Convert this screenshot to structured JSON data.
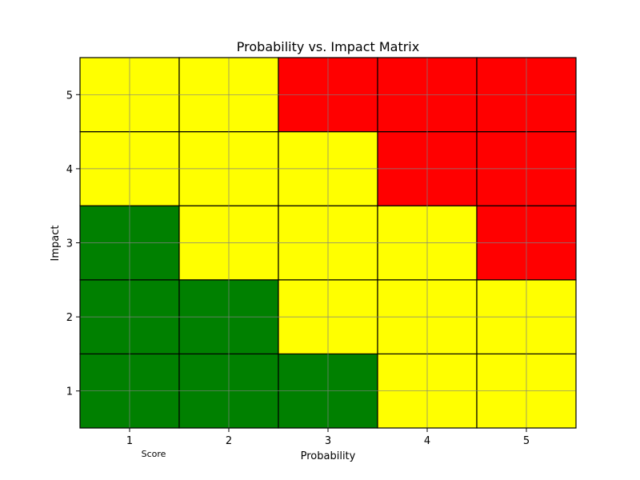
{
  "chart_data": {
    "type": "heatmap",
    "title": "Probability vs. Impact Matrix",
    "xlabel": "Probability",
    "ylabel": "Impact",
    "extra_label": "Score",
    "x_categories": [
      "1",
      "2",
      "3",
      "4",
      "5"
    ],
    "y_categories": [
      "1",
      "2",
      "3",
      "4",
      "5"
    ],
    "xlim": [
      0.5,
      5.5
    ],
    "ylim": [
      0.5,
      5.5
    ],
    "grid": true,
    "colors": {
      "green": "#008000",
      "yellow": "#ffff00",
      "red": "#ff0000",
      "grid": "#808080",
      "cell_edge": "#000000"
    },
    "cells": [
      {
        "x": 1,
        "y": 1,
        "color": "green"
      },
      {
        "x": 2,
        "y": 1,
        "color": "green"
      },
      {
        "x": 3,
        "y": 1,
        "color": "green"
      },
      {
        "x": 4,
        "y": 1,
        "color": "yellow"
      },
      {
        "x": 5,
        "y": 1,
        "color": "yellow"
      },
      {
        "x": 1,
        "y": 2,
        "color": "green"
      },
      {
        "x": 2,
        "y": 2,
        "color": "green"
      },
      {
        "x": 3,
        "y": 2,
        "color": "yellow"
      },
      {
        "x": 4,
        "y": 2,
        "color": "yellow"
      },
      {
        "x": 5,
        "y": 2,
        "color": "yellow"
      },
      {
        "x": 1,
        "y": 3,
        "color": "green"
      },
      {
        "x": 2,
        "y": 3,
        "color": "yellow"
      },
      {
        "x": 3,
        "y": 3,
        "color": "yellow"
      },
      {
        "x": 4,
        "y": 3,
        "color": "yellow"
      },
      {
        "x": 5,
        "y": 3,
        "color": "red"
      },
      {
        "x": 1,
        "y": 4,
        "color": "yellow"
      },
      {
        "x": 2,
        "y": 4,
        "color": "yellow"
      },
      {
        "x": 3,
        "y": 4,
        "color": "yellow"
      },
      {
        "x": 4,
        "y": 4,
        "color": "red"
      },
      {
        "x": 5,
        "y": 4,
        "color": "red"
      },
      {
        "x": 1,
        "y": 5,
        "color": "yellow"
      },
      {
        "x": 2,
        "y": 5,
        "color": "yellow"
      },
      {
        "x": 3,
        "y": 5,
        "color": "red"
      },
      {
        "x": 4,
        "y": 5,
        "color": "red"
      },
      {
        "x": 5,
        "y": 5,
        "color": "red"
      }
    ]
  }
}
